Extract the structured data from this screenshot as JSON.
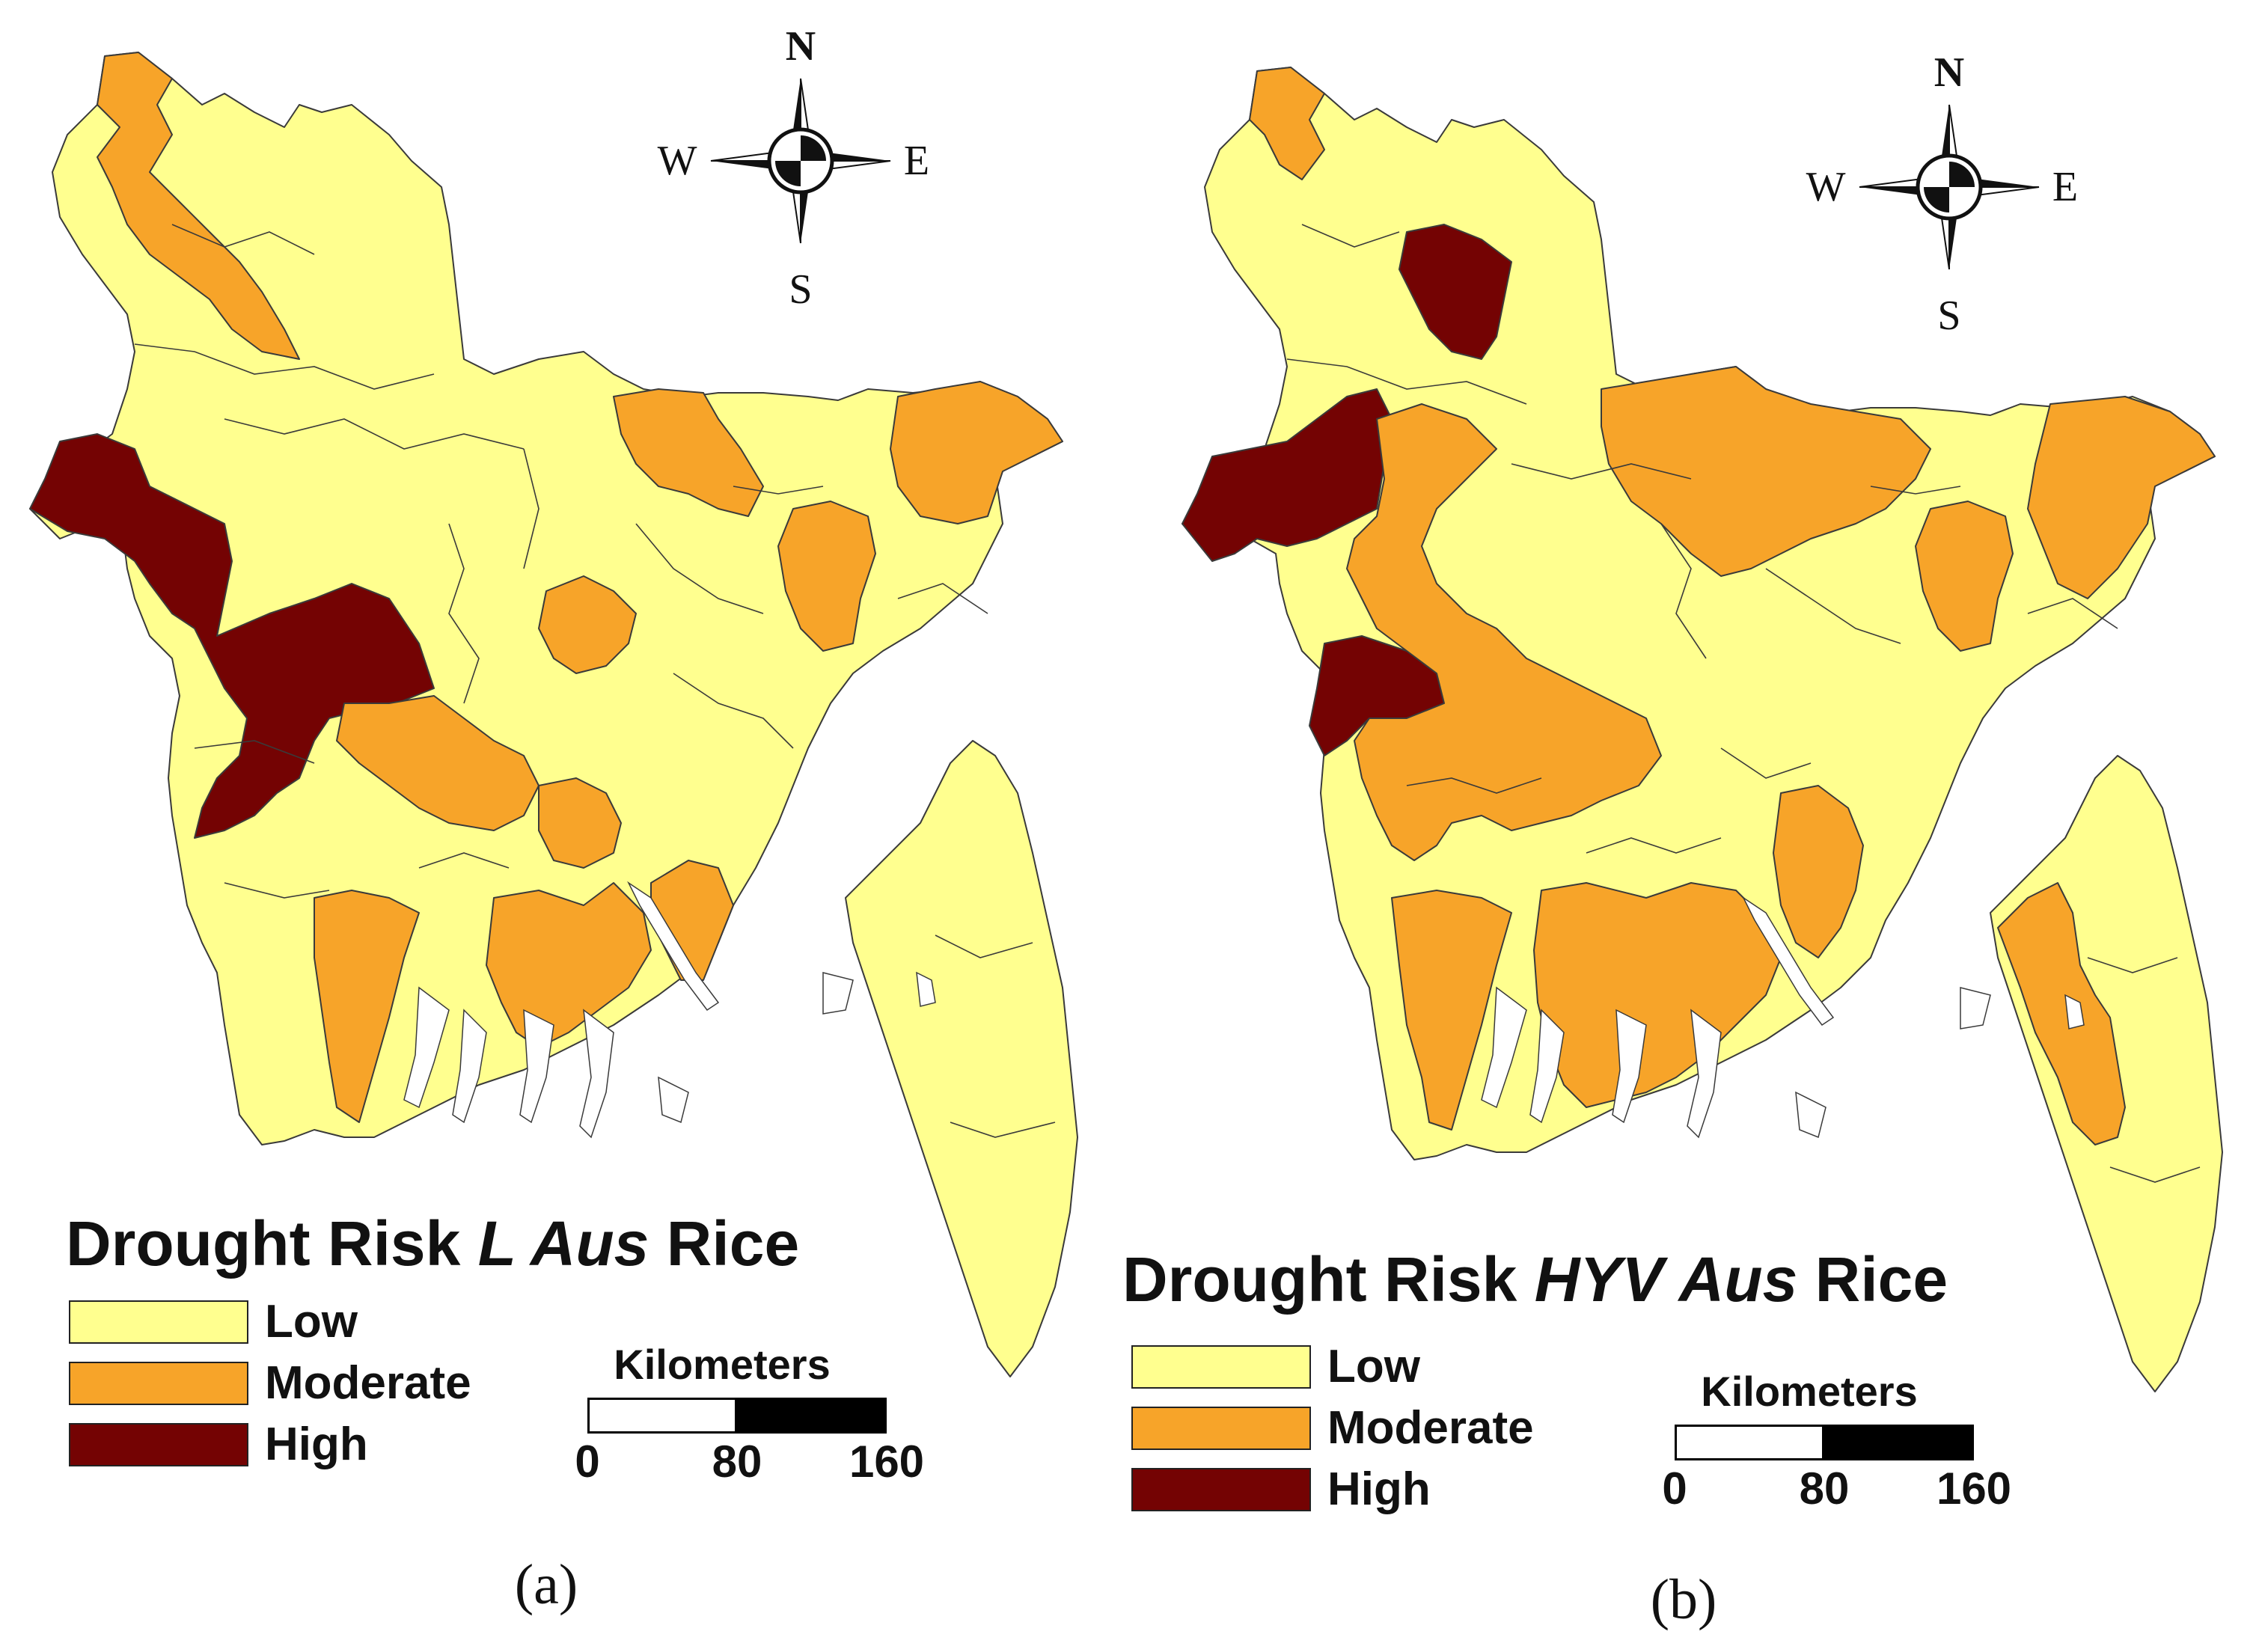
{
  "colors": {
    "low": "#ffff8f",
    "moderate": "#f7a429",
    "high": "#740303",
    "border": "#3a3a3a",
    "water": "#ffffff"
  },
  "compass": {
    "north": "N",
    "south": "S",
    "east": "E",
    "west": "W"
  },
  "panels": [
    {
      "label": "(a)",
      "title_prefix": "Drought Risk ",
      "title_variety": "L Aus",
      "title_suffix": " Rice",
      "legend": [
        {
          "label": "Low",
          "class": "low"
        },
        {
          "label": "Moderate",
          "class": "moderate"
        },
        {
          "label": "High",
          "class": "high"
        }
      ],
      "scale": {
        "unit": "Kilometers",
        "ticks": [
          "0",
          "80",
          "160"
        ]
      }
    },
    {
      "label": "(b)",
      "title_prefix": "Drought Risk ",
      "title_variety": "HYV Aus",
      "title_suffix": " Rice",
      "legend": [
        {
          "label": "Low",
          "class": "low"
        },
        {
          "label": "Moderate",
          "class": "moderate"
        },
        {
          "label": "High",
          "class": "high"
        }
      ],
      "scale": {
        "unit": "Kilometers",
        "ticks": [
          "0",
          "80",
          "160"
        ]
      }
    }
  ]
}
